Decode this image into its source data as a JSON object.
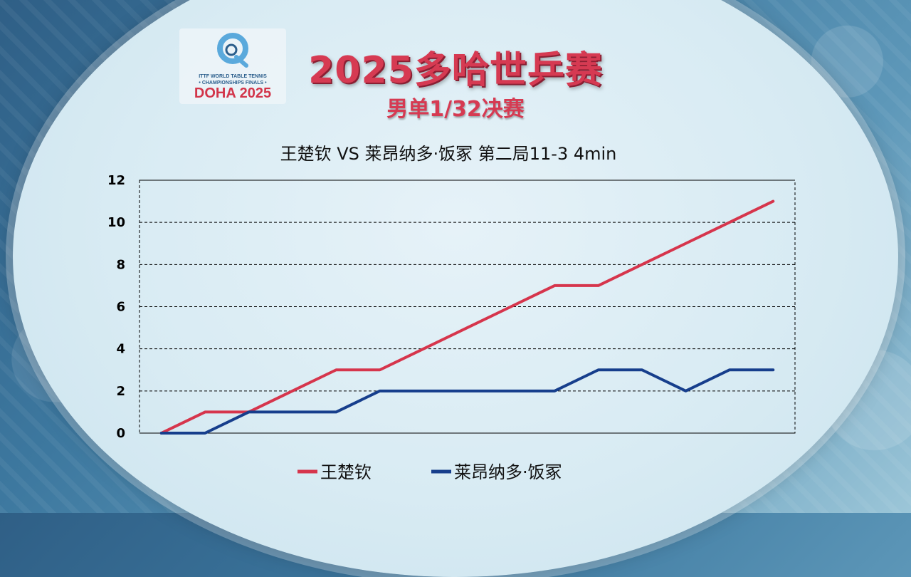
{
  "logo": {
    "line1": "ITTF WORLD TABLE TENNIS",
    "line2": "• CHAMPIONSHIPS FINALS •",
    "line3": "DOHA 2025"
  },
  "header": {
    "title": "2025多哈世乒赛",
    "subtitle": "男单1/32决赛"
  },
  "colors": {
    "series1": "#d6354c",
    "series2": "#163e8c"
  },
  "chart_data": {
    "type": "line",
    "title": "王楚钦 VS 莱昂纳多·饭冢 第二局11-3  4min",
    "xlabel": "",
    "ylabel": "",
    "ylim": [
      0,
      12
    ],
    "yticks": [
      0,
      2,
      4,
      6,
      8,
      10,
      12
    ],
    "grid": true,
    "legend_position": "bottom",
    "x": [
      0,
      1,
      2,
      3,
      4,
      5,
      6,
      7,
      8,
      9,
      10,
      11,
      12,
      13,
      14
    ],
    "series": [
      {
        "name": "王楚钦",
        "values": [
          0,
          1,
          1,
          2,
          3,
          3,
          4,
          5,
          6,
          7,
          7,
          8,
          9,
          10,
          11
        ]
      },
      {
        "name": "莱昂纳多·饭冢",
        "values": [
          0,
          0,
          1,
          1,
          1,
          2,
          2,
          2,
          2,
          2,
          3,
          3,
          2,
          3,
          3
        ]
      }
    ]
  }
}
